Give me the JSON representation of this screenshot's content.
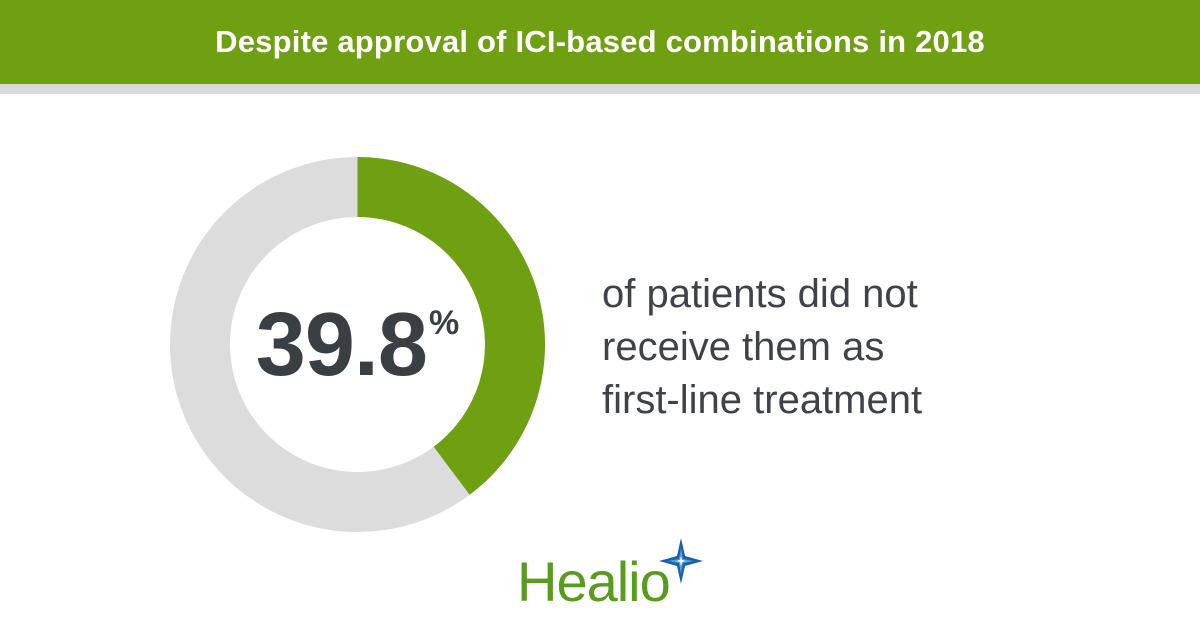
{
  "header": {
    "title": "Despite approval of ICI-based combinations in 2018"
  },
  "chart_data": {
    "type": "pie",
    "style": "donut",
    "value": 39.8,
    "value_label": "39.8",
    "unit": "%",
    "total": 100,
    "colors": {
      "value": "#6fa012",
      "remainder": "#dcdcdc"
    }
  },
  "caption": {
    "lines": [
      "of patients did not",
      "receive them as",
      "first-line treatment"
    ]
  },
  "logo": {
    "text": "Healio",
    "icon": "star-icon",
    "colors": {
      "text": "#5a9a1e",
      "star": "#1d5fa8"
    }
  },
  "colors": {
    "brand_green": "#6fa012",
    "rule_gray": "#d9d9d9",
    "text_dark": "#3a3f44"
  }
}
